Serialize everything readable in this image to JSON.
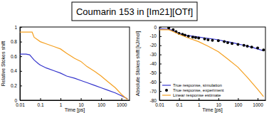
{
  "title": "Coumarin 153 in [Im21][OTf]",
  "chart_data": [
    {
      "type": "line",
      "xlabel": "Time [ps]",
      "ylabel": "Relative Stokes shift",
      "log": "x",
      "xlim": [
        0.01,
        2500
      ],
      "xticks": [
        0.01,
        0.1,
        1,
        10,
        100,
        1000
      ],
      "ylim": [
        0,
        1
      ],
      "yticks": [
        0,
        0.2,
        0.4,
        0.6,
        0.8,
        1
      ],
      "series": [
        {
          "color": "#3333cc",
          "x": [
            0.01,
            0.02,
            0.03,
            0.05,
            0.08,
            0.1,
            0.2,
            0.5,
            1,
            2,
            5,
            10,
            20,
            50,
            100,
            200,
            500,
            1000,
            2000
          ],
          "values": [
            0.63,
            0.63,
            0.62,
            0.55,
            0.5,
            0.48,
            0.44,
            0.4,
            0.37,
            0.33,
            0.3,
            0.27,
            0.24,
            0.2,
            0.17,
            0.14,
            0.1,
            0.06,
            0.02
          ]
        },
        {
          "color": "#f5a020",
          "x": [
            0.01,
            0.04,
            0.05,
            0.1,
            0.2,
            0.5,
            1,
            2,
            5,
            10,
            20,
            50,
            100,
            200,
            500,
            1000,
            2000
          ],
          "values": [
            0.93,
            0.93,
            0.86,
            0.8,
            0.77,
            0.73,
            0.7,
            0.64,
            0.57,
            0.53,
            0.46,
            0.39,
            0.33,
            0.26,
            0.17,
            0.08,
            0.01
          ]
        }
      ]
    },
    {
      "type": "line",
      "xlabel": "Time [ps]",
      "ylabel": "Absolute Stokes shift [kJ/mol]",
      "log": "x",
      "legend": "lower left",
      "xlim": [
        0.01,
        2500
      ],
      "xticks": [
        0.01,
        0.1,
        1,
        10,
        100,
        1000
      ],
      "ylim": [
        -80,
        0
      ],
      "yticks": [
        -80,
        -70,
        -60,
        -50,
        -40,
        -30,
        -20,
        -10,
        0
      ],
      "series": [
        {
          "name": "True response, simulation",
          "color": "#3333cc",
          "x": [
            0.01,
            0.03,
            0.05,
            0.1,
            0.2,
            0.5,
            1,
            2,
            5,
            10,
            20,
            50,
            100,
            200,
            500,
            1000,
            2000
          ],
          "values": [
            -2,
            -2.5,
            -4,
            -7,
            -9,
            -10,
            -11,
            -12,
            -13,
            -14,
            -15.5,
            -17,
            -18.5,
            -20,
            -22,
            -24,
            -26
          ]
        },
        {
          "name": "True response, experiment",
          "color": "#000000",
          "type": "scatter",
          "marker": "circle",
          "x": [
            0.03,
            0.05,
            0.07,
            0.1,
            0.15,
            0.2,
            0.3,
            0.5,
            0.7,
            1,
            2,
            3,
            5,
            10,
            20,
            30,
            50,
            100,
            200,
            300,
            500,
            1000,
            2000
          ],
          "values": [
            -1,
            -3,
            -5,
            -7,
            -8,
            -9,
            -10,
            -11,
            -11.5,
            -12,
            -13,
            -14,
            -14.5,
            -15,
            -16,
            -17,
            -18,
            -19,
            -20,
            -21,
            -22,
            -23,
            -25
          ]
        },
        {
          "name": "Linear response estimate",
          "color": "#f5a020",
          "x": [
            0.01,
            0.03,
            0.05,
            0.1,
            0.3,
            1,
            3,
            10,
            30,
            100,
            300,
            1000,
            2000
          ],
          "values": [
            -3,
            -3,
            -5,
            -8,
            -12,
            -16,
            -21,
            -27,
            -35,
            -44,
            -55,
            -68,
            -76
          ]
        }
      ]
    }
  ]
}
